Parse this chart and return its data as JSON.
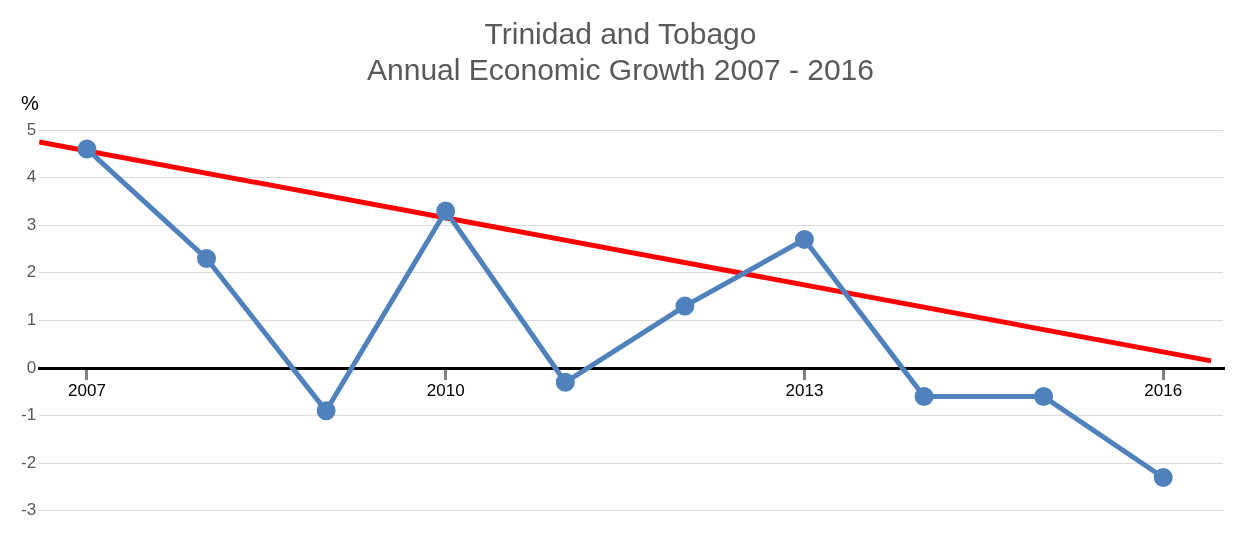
{
  "chart_data": {
    "type": "line",
    "title": "Trinidad and Tobago",
    "subtitle": "Annual Economic Growth 2007 - 2016",
    "ylabel": "%",
    "x": [
      2007,
      2008,
      2009,
      2010,
      2011,
      2012,
      2013,
      2014,
      2015,
      2016
    ],
    "xlim": [
      2006.6,
      2016.5
    ],
    "xticks": [
      2007,
      2010,
      2013,
      2016
    ],
    "ylim": [
      -3,
      5
    ],
    "yticks": [
      -3,
      -2,
      -1,
      0,
      1,
      2,
      3,
      4,
      5
    ],
    "series": [
      {
        "color": "#4f81bd",
        "values": [
          4.6,
          2.3,
          -0.9,
          3.3,
          -0.3,
          1.3,
          2.7,
          -0.6,
          -0.6,
          -2.3
        ],
        "marker": "circle"
      },
      {
        "type": "line",
        "color": "#ff0000",
        "x": [
          2006.6,
          2016.4
        ],
        "values": [
          4.75,
          0.15
        ],
        "marker": "none"
      }
    ],
    "grid": "y",
    "legend": false,
    "line_style": "solid"
  }
}
